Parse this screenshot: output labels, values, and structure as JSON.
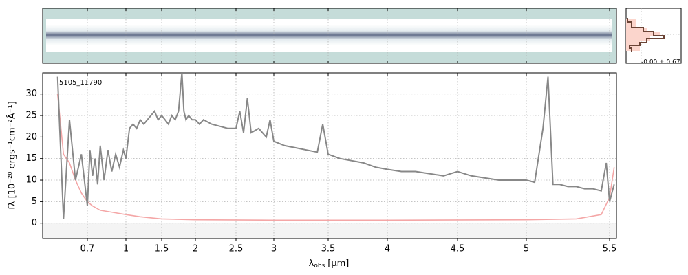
{
  "chart_data": {
    "type": "line",
    "annotation": "5105_11790",
    "xlabel": {
      "symbol": "λ",
      "subscript": "obs",
      "unit": "[μm]"
    },
    "ylabel": "fλ [10⁻²⁰ ergs⁻¹cm⁻²Å⁻¹]",
    "profile_label": "-0.00 ± 0.67",
    "xlim": [
      0.55,
      5.53
    ],
    "xticks": [
      0.7,
      1.0,
      1.5,
      2.0,
      2.5,
      3.0,
      3.5,
      4.0,
      4.5,
      5.0,
      5.5
    ],
    "ylim": [
      -3.4,
      34.9
    ],
    "yticks": [
      0,
      5,
      10,
      15,
      20,
      25,
      30
    ],
    "grid": true,
    "series": [
      {
        "color": "#888888",
        "x": [
          0.6,
          0.62,
          0.64,
          0.66,
          0.68,
          0.7,
          0.72,
          0.74,
          0.76,
          0.78,
          0.8,
          0.83,
          0.86,
          0.89,
          0.92,
          0.95,
          0.98,
          1.0,
          1.05,
          1.1,
          1.15,
          1.2,
          1.25,
          1.3,
          1.35,
          1.4,
          1.45,
          1.5,
          1.55,
          1.6,
          1.65,
          1.7,
          1.75,
          1.8,
          1.83,
          1.86,
          1.9,
          1.95,
          2.0,
          2.05,
          2.1,
          2.2,
          2.3,
          2.4,
          2.5,
          2.55,
          2.6,
          2.65,
          2.7,
          2.8,
          2.9,
          2.95,
          3.0,
          3.1,
          3.2,
          3.3,
          3.4,
          3.45,
          3.5,
          3.55,
          3.6,
          3.7,
          3.8,
          3.9,
          4.0,
          4.1,
          4.2,
          4.3,
          4.4,
          4.5,
          4.6,
          4.7,
          4.8,
          4.9,
          5.0,
          5.05,
          5.1,
          5.13,
          5.16,
          5.2,
          5.25,
          5.3,
          5.35,
          5.4,
          5.45,
          5.48,
          5.5,
          5.52
        ],
        "values": [
          34,
          1,
          24,
          10,
          16,
          4,
          17,
          11,
          15,
          9,
          18,
          10,
          17,
          12,
          16,
          13,
          17,
          15,
          22,
          23,
          22,
          24,
          23,
          24,
          25,
          26,
          24,
          25,
          24,
          23,
          25,
          24,
          26,
          35,
          26,
          24,
          25,
          24,
          24,
          23,
          24,
          23,
          22.5,
          22,
          22,
          26,
          21,
          29,
          21,
          22,
          20,
          24,
          19,
          18,
          17.5,
          17,
          16.5,
          23,
          16,
          15.5,
          15,
          14.5,
          14,
          13,
          12.5,
          12,
          12,
          11.5,
          11,
          12,
          11,
          10.5,
          10,
          10,
          10,
          9.5,
          22,
          34,
          9,
          9,
          8.5,
          8.5,
          8,
          8,
          7.5,
          14,
          5,
          9
        ]
      },
      {
        "color": "#f4a6a6",
        "x": [
          0.6,
          0.62,
          0.64,
          0.66,
          0.68,
          0.7,
          0.74,
          0.8,
          0.9,
          1.0,
          1.2,
          1.5,
          2.0,
          3.0,
          4.0,
          5.0,
          5.3,
          5.45,
          5.5,
          5.52
        ],
        "values": [
          30,
          16,
          14,
          10,
          7,
          5,
          4,
          3,
          2.5,
          2,
          1.5,
          1,
          0.8,
          0.7,
          0.7,
          0.8,
          1,
          2,
          6,
          13
        ]
      }
    ]
  }
}
